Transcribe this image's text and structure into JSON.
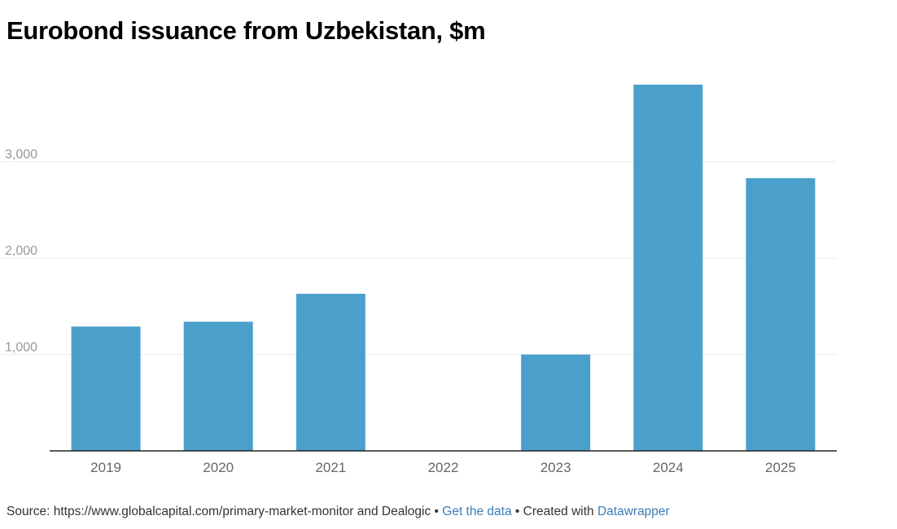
{
  "title": "Eurobond issuance from Uzbekistan, $m",
  "chart_data": {
    "type": "bar",
    "categories": [
      "2019",
      "2020",
      "2021",
      "2022",
      "2023",
      "2024",
      "2025"
    ],
    "values": [
      1290,
      1340,
      1630,
      0,
      1000,
      3800,
      2830
    ],
    "ylim": [
      0,
      3800
    ],
    "yticks": [
      1000,
      2000,
      3000
    ],
    "ytick_labels": [
      "1,000",
      "2,000",
      "3,000"
    ],
    "grid": true,
    "bar_color": "#4ba0cb",
    "axis_color": "#222222",
    "tick_label_color": "#999999",
    "category_label_color": "#666666"
  },
  "footer": {
    "source_prefix": "Source:",
    "source_text": "https://www.globalcapital.com/primary-market-monitor and Dealogic",
    "separator": "•",
    "get_data_label": "Get the data",
    "created_with_label": "Created with",
    "tool_name": "Datawrapper"
  }
}
